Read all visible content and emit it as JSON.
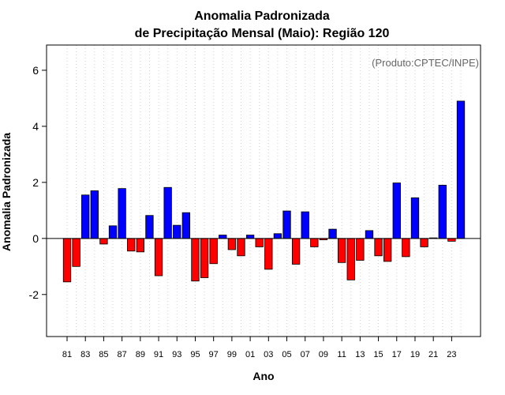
{
  "chart_data": {
    "type": "bar",
    "title_line1": "Anomalia Padronizada",
    "title_line2": "de Precipitação Mensal (Maio): Região 120",
    "credit": "(Produto:CPTEC/INPE)",
    "xlabel": "Ano",
    "ylabel": "Anomalia Padronizada",
    "ylim": [
      -3.5,
      6.9
    ],
    "yticks": [
      -2,
      0,
      2,
      4,
      6
    ],
    "ytick_labels": [
      "-2",
      "0",
      "2",
      "4",
      "6"
    ],
    "grid": "vertical dotted",
    "categories": [
      "81",
      "82",
      "83",
      "84",
      "85",
      "86",
      "87",
      "88",
      "89",
      "90",
      "91",
      "92",
      "93",
      "94",
      "95",
      "96",
      "97",
      "98",
      "99",
      "00",
      "01",
      "02",
      "03",
      "04",
      "05",
      "06",
      "07",
      "08",
      "09",
      "10",
      "11",
      "12",
      "13",
      "14",
      "15",
      "16",
      "17",
      "18",
      "19",
      "20",
      "21",
      "22",
      "23",
      "24"
    ],
    "xtick_labels": [
      "81",
      "83",
      "85",
      "87",
      "89",
      "91",
      "93",
      "95",
      "97",
      "99",
      "01",
      "03",
      "05",
      "07",
      "09",
      "11",
      "13",
      "15",
      "17",
      "19",
      "21",
      "23"
    ],
    "values": [
      -1.55,
      -1.0,
      1.55,
      1.7,
      -0.2,
      0.45,
      1.78,
      -0.45,
      -0.48,
      0.82,
      -1.33,
      1.82,
      0.47,
      0.92,
      -1.52,
      -1.4,
      -0.9,
      0.12,
      -0.4,
      -0.62,
      0.12,
      -0.3,
      -1.1,
      0.17,
      0.98,
      -0.92,
      0.95,
      -0.3,
      -0.05,
      0.33,
      -0.86,
      -1.48,
      -0.78,
      0.28,
      -0.62,
      -0.82,
      1.98,
      -0.65,
      1.45,
      -0.3,
      0.02,
      1.9,
      -0.1,
      4.9
    ],
    "colors": {
      "positive": "#0000ff",
      "negative": "#ff0000",
      "outline": "#000000",
      "grid": "#d3d3d3"
    }
  }
}
